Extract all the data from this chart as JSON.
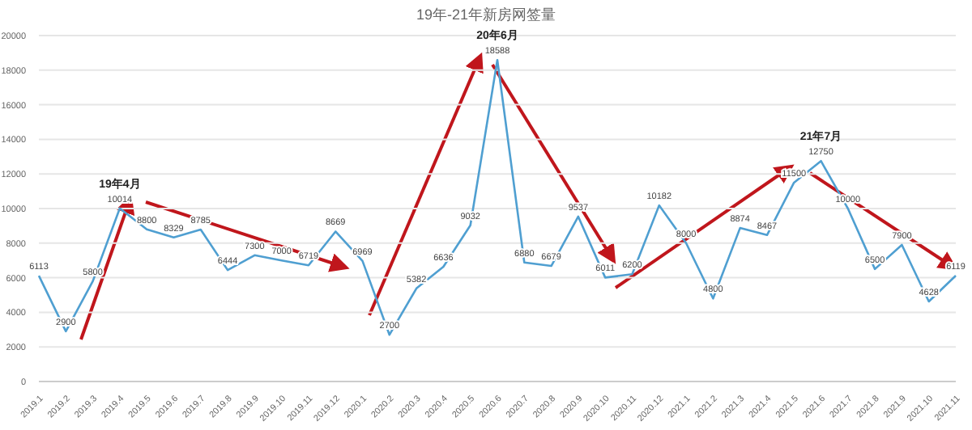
{
  "chart_data": {
    "type": "line",
    "title": "19年-21年新房网签量",
    "categories": [
      "2019.1",
      "2019.2",
      "2019.3",
      "2019.4",
      "2019.5",
      "2019.6",
      "2019.7",
      "2019.8",
      "2019.9",
      "2019.10",
      "2019.11",
      "2019.12",
      "2020.1",
      "2020.2",
      "2020.3",
      "2020.4",
      "2020.5",
      "2020.6",
      "2020.7",
      "2020.8",
      "2020.9",
      "2020.10",
      "2020.11",
      "2020.12",
      "2021.1",
      "2021.2",
      "2021.3",
      "2021.4",
      "2021.5",
      "2021.6",
      "2021.7",
      "2021.8",
      "2021.9",
      "2021.10",
      "2021.11"
    ],
    "series": [
      {
        "color": "#4f9fd1",
        "values": [
          6113,
          2900,
          5800,
          10014,
          8800,
          8329,
          8785,
          6444,
          7300,
          7000,
          6719,
          8669,
          6969,
          2700,
          5382,
          6636,
          9032,
          18588,
          6880,
          6679,
          9537,
          6011,
          6200,
          10182,
          8000,
          4800,
          8874,
          8467,
          11500,
          12750,
          10000,
          6500,
          7900,
          4628,
          6119
        ]
      }
    ],
    "ylim": [
      0,
      20000
    ],
    "yticks": [
      0,
      2000,
      4000,
      6000,
      8000,
      10000,
      12000,
      14000,
      16000,
      18000,
      20000
    ],
    "grid": "y",
    "data_labels": true,
    "legend": false,
    "marker": "none",
    "line_style": "solid",
    "annotations": [
      {
        "text": "19年4月",
        "x": "2019.4",
        "y": 10014
      },
      {
        "text": "20年6月",
        "x": "2020.6",
        "y": 18588
      },
      {
        "text": "21年7月",
        "x": "2021.6",
        "y": 12750
      }
    ]
  }
}
